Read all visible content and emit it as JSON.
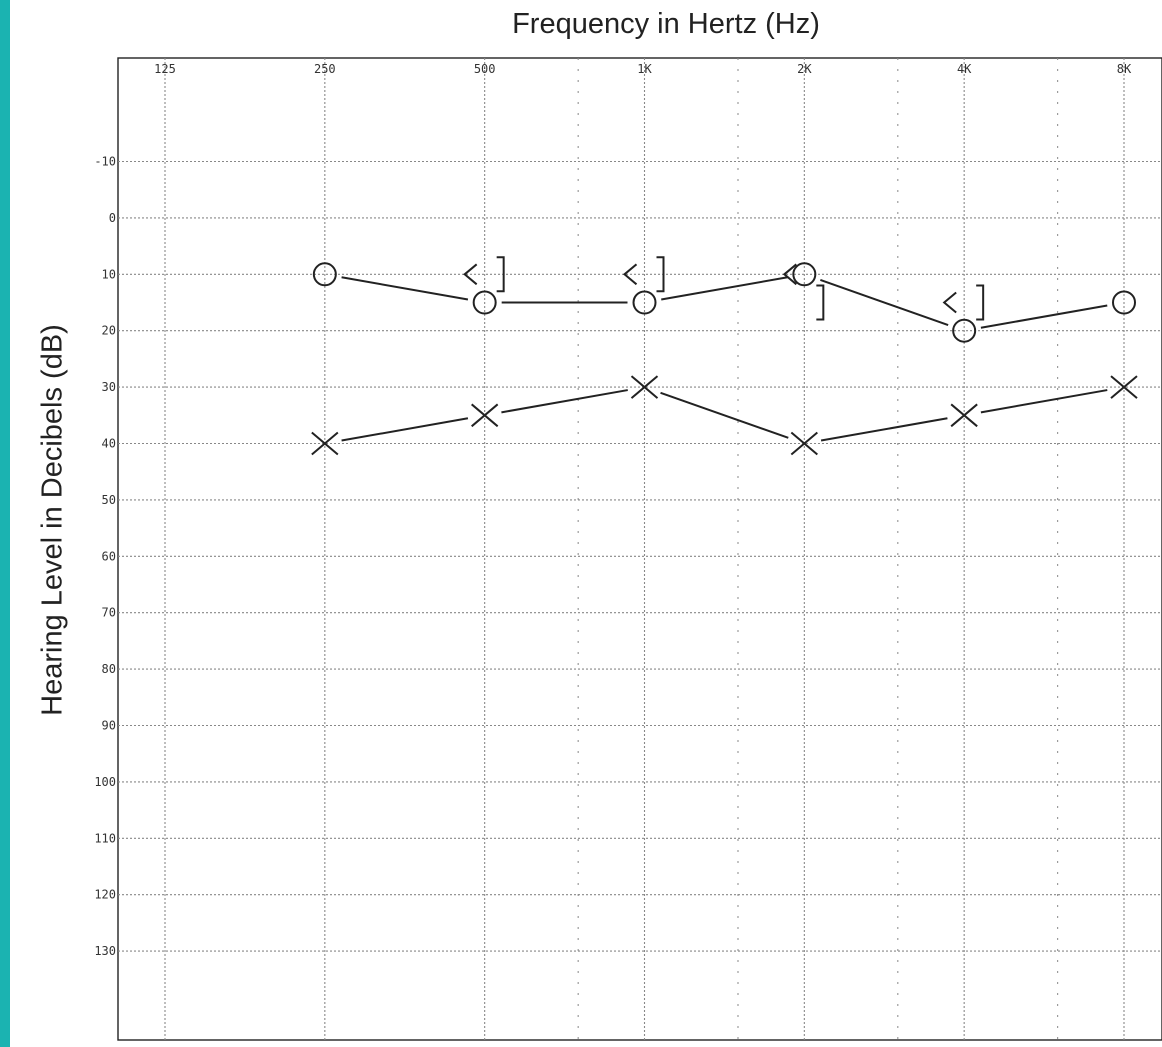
{
  "colors": {
    "left_band": "#1bb3b1",
    "grid": "#888888",
    "ink": "#222222"
  },
  "chart_data": {
    "type": "line",
    "title": "",
    "xlabel": "Frequency in Hertz (Hz)",
    "ylabel": "Hearing Level in Decibels (dB)",
    "x_scale": "log2",
    "x_tick_labels": [
      "125",
      "250",
      "500",
      "1K",
      "2K",
      "4K",
      "8K"
    ],
    "x_ticks_hz": [
      125,
      250,
      500,
      1000,
      2000,
      4000,
      8000
    ],
    "x_minor_ticks_hz": [
      750,
      1500,
      3000,
      6000
    ],
    "y_tick_labels": [
      "-10",
      "0",
      "10",
      "20",
      "30",
      "40",
      "50",
      "60",
      "70",
      "80",
      "90",
      "100",
      "110",
      "120",
      "130"
    ],
    "ylim": [
      -20,
      140
    ],
    "y_inverted": true,
    "grid": true,
    "series": [
      {
        "marker": "circle",
        "x": [
          250,
          500,
          1000,
          2000,
          4000,
          8000
        ],
        "y": [
          10,
          15,
          15,
          10,
          20,
          15
        ]
      },
      {
        "marker": "cross",
        "x": [
          250,
          500,
          1000,
          2000,
          4000,
          8000
        ],
        "y": [
          40,
          35,
          30,
          40,
          35,
          30
        ]
      },
      {
        "marker": "bone-masked-bracket",
        "x": [
          500,
          1000,
          2000,
          4000
        ],
        "y": [
          10,
          10,
          15,
          15
        ]
      },
      {
        "marker": "bone-unmasked-angle",
        "x": [
          500,
          1000,
          2000,
          4000
        ],
        "y": [
          10,
          10,
          10,
          15
        ]
      }
    ]
  }
}
